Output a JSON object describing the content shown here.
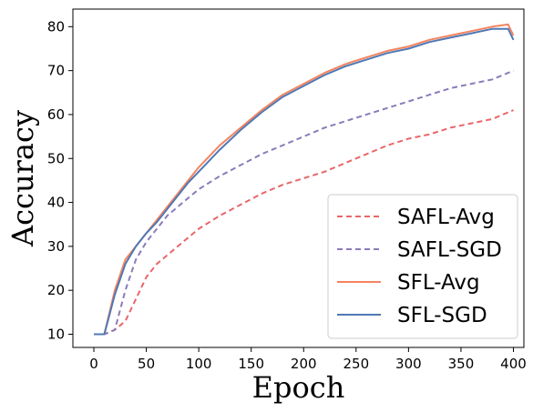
{
  "chart_data": {
    "type": "line",
    "xlabel": "Epoch",
    "ylabel": "Accuracy",
    "xlim": [
      -20,
      410
    ],
    "ylim": [
      7,
      84
    ],
    "xticks": [
      0,
      50,
      100,
      150,
      200,
      250,
      300,
      350,
      400
    ],
    "yticks": [
      10,
      20,
      30,
      40,
      50,
      60,
      70,
      80
    ],
    "grid": false,
    "legend_position": "lower-right",
    "series": [
      {
        "name": "SAFL-Avg",
        "color": "#e8666a",
        "style": "dashed",
        "x": [
          0,
          10,
          20,
          30,
          40,
          50,
          60,
          70,
          80,
          90,
          100,
          120,
          140,
          160,
          180,
          200,
          220,
          240,
          260,
          280,
          300,
          320,
          340,
          360,
          380,
          395,
          400
        ],
        "y": [
          10,
          10,
          11,
          13,
          18,
          23,
          26,
          28,
          30,
          32,
          34,
          37,
          39.5,
          42,
          44,
          45.5,
          47,
          49,
          51,
          53,
          54.5,
          55.5,
          57,
          58,
          59,
          60.5,
          61
        ]
      },
      {
        "name": "SAFL-SGD",
        "color": "#8b7bba",
        "style": "dashed",
        "x": [
          0,
          10,
          20,
          30,
          40,
          50,
          60,
          70,
          80,
          90,
          100,
          120,
          140,
          160,
          180,
          200,
          220,
          240,
          260,
          280,
          300,
          320,
          340,
          360,
          380,
          395,
          400
        ],
        "y": [
          10,
          10,
          11,
          20,
          27,
          31,
          34,
          37,
          39,
          41,
          43,
          46,
          48.5,
          51,
          53,
          55,
          57,
          58.5,
          60,
          61.5,
          63,
          64.5,
          66,
          67,
          68,
          69.5,
          70
        ]
      },
      {
        "name": "SFL-Avg",
        "color": "#f4845f",
        "style": "solid",
        "x": [
          0,
          10,
          20,
          30,
          40,
          50,
          60,
          70,
          80,
          90,
          100,
          120,
          140,
          160,
          180,
          200,
          220,
          240,
          260,
          280,
          300,
          320,
          340,
          360,
          380,
          395,
          400
        ],
        "y": [
          10,
          10,
          20,
          27,
          30,
          33,
          36,
          39,
          42,
          45,
          48,
          53,
          57,
          61,
          64.5,
          67,
          69.5,
          71.5,
          73,
          74.5,
          75.5,
          77,
          78,
          79,
          80,
          80.5,
          78
        ]
      },
      {
        "name": "SFL-SGD",
        "color": "#4f79b5",
        "style": "solid",
        "x": [
          0,
          10,
          20,
          30,
          40,
          50,
          60,
          70,
          80,
          90,
          100,
          120,
          140,
          160,
          180,
          200,
          220,
          240,
          260,
          280,
          300,
          320,
          340,
          360,
          380,
          395,
          400
        ],
        "y": [
          10,
          10,
          19,
          26,
          30,
          33,
          35.5,
          38.5,
          41.5,
          44.5,
          47,
          52,
          56.5,
          60.5,
          64,
          66.5,
          69,
          71,
          72.5,
          74,
          75,
          76.5,
          77.5,
          78.5,
          79.5,
          79.5,
          77
        ]
      }
    ]
  }
}
